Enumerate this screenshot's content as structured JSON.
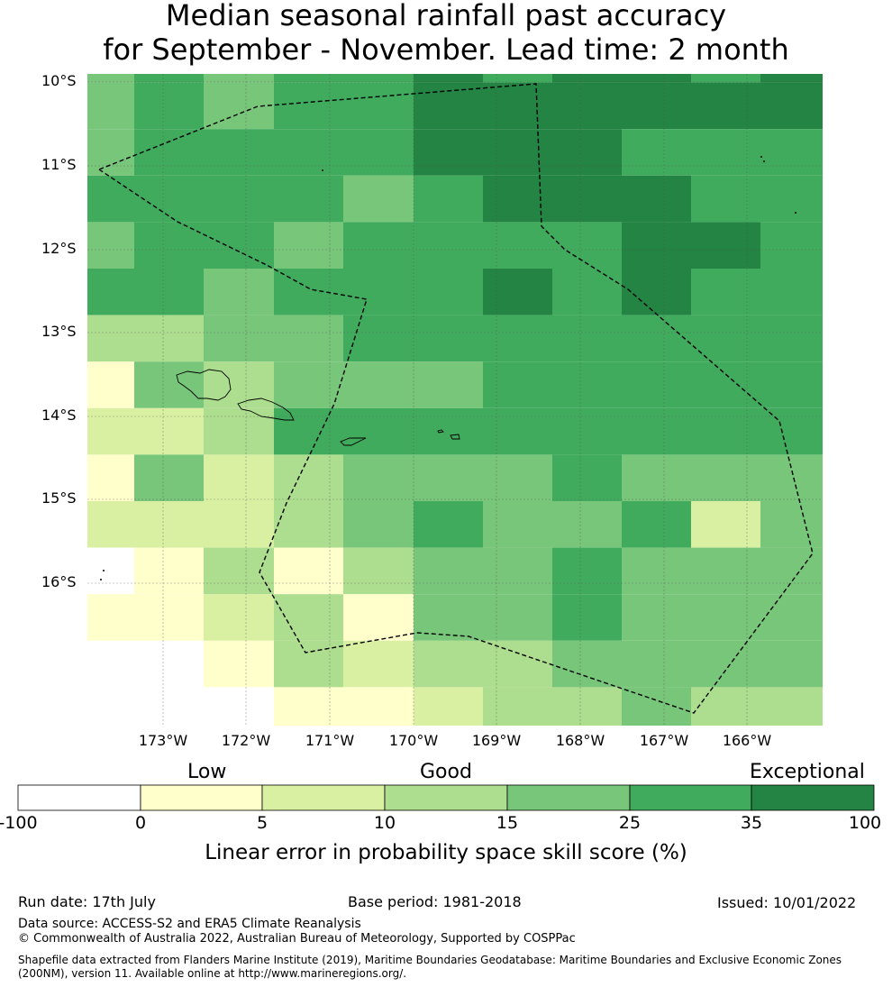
{
  "title": {
    "line1": "Median seasonal rainfall past accuracy",
    "line2": "for September - November. Lead time: 2 month"
  },
  "map": {
    "lat_labels": [
      "10°S",
      "11°S",
      "12°S",
      "13°S",
      "14°S",
      "15°S",
      "16°S"
    ],
    "lon_labels": [
      "173°W",
      "172°W",
      "171°W",
      "170°W",
      "169°W",
      "168°W",
      "167°W",
      "166°W"
    ],
    "lon_min": -173.9,
    "lon_max": -165.1,
    "lat_max": -10.1,
    "lat_min": -17.9,
    "grid_resolution_deg": 0.5625,
    "skill_grid_classes": [
      [
        4,
        5,
        4,
        5,
        5,
        6,
        5,
        6,
        6,
        5,
        6
      ],
      [
        4,
        5,
        4,
        5,
        5,
        6,
        6,
        6,
        6,
        6,
        6
      ],
      [
        4,
        5,
        5,
        5,
        5,
        6,
        6,
        6,
        5,
        5,
        5
      ],
      [
        5,
        5,
        5,
        5,
        4,
        5,
        6,
        6,
        6,
        5,
        5
      ],
      [
        4,
        5,
        5,
        4,
        5,
        5,
        5,
        5,
        6,
        6,
        5
      ],
      [
        5,
        5,
        4,
        5,
        5,
        5,
        6,
        5,
        6,
        5,
        5
      ],
      [
        3,
        3,
        4,
        4,
        5,
        5,
        5,
        5,
        5,
        5,
        5
      ],
      [
        1,
        4,
        3,
        4,
        4,
        4,
        5,
        5,
        5,
        5,
        5
      ],
      [
        2,
        2,
        3,
        5,
        5,
        5,
        5,
        5,
        5,
        5,
        5
      ],
      [
        1,
        4,
        2,
        3,
        4,
        4,
        4,
        5,
        4,
        4,
        4
      ],
      [
        2,
        2,
        2,
        3,
        4,
        5,
        4,
        4,
        5,
        2,
        4
      ],
      [
        0,
        1,
        3,
        1,
        3,
        4,
        4,
        5,
        4,
        4,
        4
      ],
      [
        1,
        1,
        2,
        3,
        1,
        4,
        4,
        5,
        4,
        4,
        4
      ],
      [
        0,
        0,
        1,
        3,
        2,
        3,
        3,
        4,
        4,
        4,
        4
      ],
      [
        0,
        0,
        0,
        1,
        1,
        2,
        3,
        3,
        4,
        3,
        3
      ]
    ],
    "land_color": "#000000",
    "eez_boundary_style": "dashed"
  },
  "colorbar": {
    "categories": [
      {
        "label": "Low",
        "at": 1.5
      },
      {
        "label": "Good",
        "at": 3.5
      },
      {
        "label": "Exceptional",
        "at": 7
      }
    ],
    "ticks": [
      "-100",
      "0",
      "5",
      "10",
      "15",
      "25",
      "35",
      "100"
    ],
    "colors": [
      "#ffffff",
      "#ffffcc",
      "#d9f0a3",
      "#addd8e",
      "#78c679",
      "#41ab5d",
      "#238443"
    ],
    "label": "Linear error in probability space skill score (%)"
  },
  "footer": {
    "run_date": "Run date: 17th July",
    "base_period": "Base period: 1981-2018",
    "issued": "Issued: 10/01/2022",
    "data_source": "Data source: ACCESS-S2 and ERA5 Climate Reanalysis",
    "copyright": "© Commonwealth of Australia 2022, Australian Bureau of Meteorology, Supported by COSPPac",
    "shapefile_line1": "Shapefile data extracted from Flanders Marine Institute (2019), Maritime Boundaries Geodatabase: Maritime Boundaries and Exclusive Economic Zones",
    "shapefile_line2": "(200NM), version 11. Available online at http://www.marineregions.org/."
  }
}
